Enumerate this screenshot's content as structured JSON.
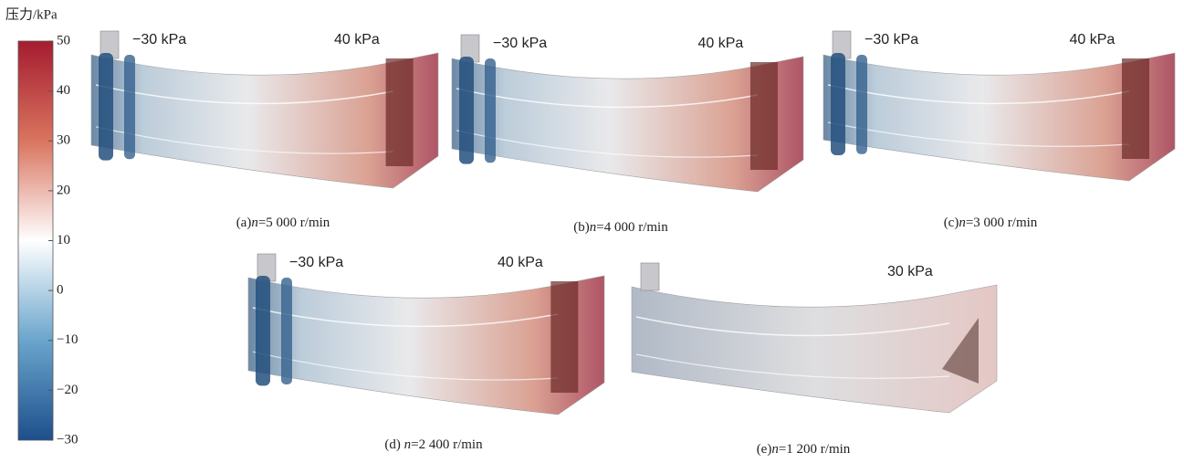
{
  "colorbar": {
    "title": "压力/kPa",
    "min": -30,
    "max": 50,
    "zero_color_at": 10,
    "ticks": [
      50,
      40,
      30,
      20,
      10,
      0,
      {
        "value": -10,
        "label": "−10"
      },
      {
        "value": -20,
        "label": "−20"
      },
      {
        "value": -30,
        "label": "−30"
      }
    ]
  },
  "panels": [
    {
      "label_prefix": "(a)",
      "label_var": "n",
      "label_rest": "=5 000 r/min",
      "annotations": [
        {
          "text": "−30 kPa",
          "color": "#6f93c8"
        },
        {
          "text": "40 kPa",
          "color": "#c46a7e"
        }
      ]
    },
    {
      "label_prefix": "(b)",
      "label_var": "n",
      "label_rest": "=4 000 r/min",
      "annotations": [
        {
          "text": "−30 kPa",
          "color": "#6f93c8"
        },
        {
          "text": "40 kPa",
          "color": "#c46a7e"
        }
      ]
    },
    {
      "label_prefix": "(c)",
      "label_var": "n",
      "label_rest": "=3 000 r/min",
      "annotations": [
        {
          "text": "−30 kPa",
          "color": "#6f93c8"
        },
        {
          "text": "40 kPa",
          "color": "#c46a7e"
        }
      ]
    },
    {
      "label_prefix": "(d) ",
      "label_var": "n",
      "label_rest": "=2 400 r/min",
      "annotations": [
        {
          "text": "−30 kPa",
          "color": "#6f93c8"
        },
        {
          "text": "40 kPa",
          "color": "#c46a7e"
        }
      ]
    },
    {
      "label_prefix": "(e)",
      "label_var": "n",
      "label_rest": "=1 200 r/min",
      "annotations": [
        {
          "text": "30 kPa",
          "color": "#c8848f"
        }
      ]
    }
  ]
}
